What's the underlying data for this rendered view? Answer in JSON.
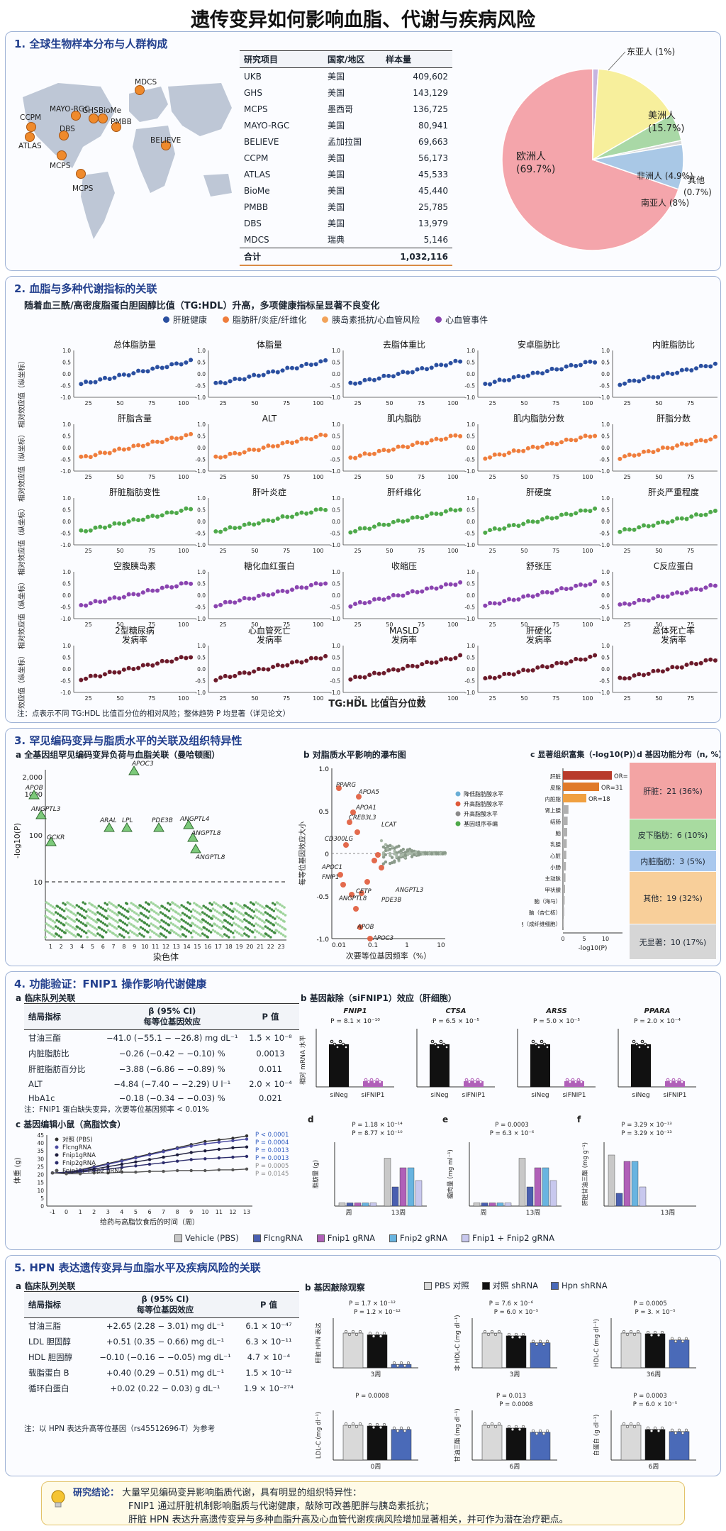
{
  "title": "遗传变异如何影响血脂、代谢与疾病风险",
  "sec1": {
    "title": "1. 全球生物样本分布与人群构成",
    "map_labels": [
      "MAYO-RGC",
      "GHS",
      "BioMe",
      "MDCS",
      "CCPM",
      "DBS",
      "PMBB",
      "BELIEVE",
      "ATLAS",
      "MCPS",
      "MCPS"
    ],
    "table_headers": [
      "研究项目",
      "国家/地区",
      "样本量"
    ],
    "table_rows": [
      [
        "UKB",
        "美国",
        "409,602"
      ],
      [
        "GHS",
        "美国",
        "143,129"
      ],
      [
        "MCPS",
        "墨西哥",
        "136,725"
      ],
      [
        "MAYO-RGC",
        "美国",
        "80,941"
      ],
      [
        "BELIEVE",
        "孟加拉国",
        "69,663"
      ],
      [
        "CCPM",
        "美国",
        "56,173"
      ],
      [
        "ATLAS",
        "美国",
        "45,533"
      ],
      [
        "BioMe",
        "美国",
        "45,440"
      ],
      [
        "PMBB",
        "美国",
        "25,785"
      ],
      [
        "DBS",
        "美国",
        "13,979"
      ],
      [
        "MDCS",
        "瑞典",
        "5,146"
      ]
    ],
    "total": [
      "合计",
      "",
      "1,032,116"
    ],
    "pie_labels": [
      "欧洲人",
      "(69.7%)",
      "美洲人",
      "(15.7%)",
      "南亚人 (8%)",
      "非洲人 (4.9%)",
      "东亚人 (1%)",
      "其他",
      "(0.7%)"
    ],
    "pie": [
      {
        "name": "欧洲人",
        "value": 69.7,
        "color": "#f4a5ab"
      },
      {
        "name": "东亚人",
        "value": 1,
        "color": "#c6b4e0"
      },
      {
        "name": "美洲人",
        "value": 15.7,
        "color": "#f7ef9c"
      },
      {
        "name": "非洲人",
        "value": 4.9,
        "color": "#a9d8a6"
      },
      {
        "name": "其他",
        "value": 0.7,
        "color": "#d9d9d9"
      },
      {
        "name": "南亚人",
        "value": 8,
        "color": "#a9c8e6"
      }
    ]
  },
  "sec2": {
    "title": "2. 血脂与多种代谢指标的关联",
    "subtitle": "随着血三酰/高密度脂蛋白胆固醇比值（TG:HDL）升高，多项健康指标呈显著不良变化",
    "legend": [
      {
        "name": "肝脏健康",
        "color": "#2a4fa0"
      },
      {
        "name": "脂肪肝/炎症/纤维化",
        "color": "#ef7d3c"
      },
      {
        "name": "胰岛素抵抗/心血管风险",
        "color": "#ef7d3c"
      },
      {
        "name": "心血管事件",
        "color": "#7b3b99"
      }
    ],
    "ylabel": "相对效应值（纵坐标）",
    "xticks": [
      "25",
      "50",
      "75",
      "100"
    ],
    "yticks": [
      "1.0",
      "0.5",
      "0.0",
      "-0.5",
      "-1.0"
    ],
    "rows": [
      {
        "color": "#2a4fa0",
        "titles": [
          "总体脂肪量",
          "体脂量",
          "去脂体重比",
          "安卓脂肪比",
          "内脏脂肪比"
        ]
      },
      {
        "color": "#ef7d3c",
        "titles": [
          "肝脂含量",
          "ALT",
          "肌内脂肪",
          "肌内脂肪分数",
          "肝脂分数"
        ]
      },
      {
        "color": "#4ea94a",
        "titles": [
          "肝脏脂肪变性",
          "肝叶炎症",
          "肝纤维化",
          "肝硬度",
          "肝炎严重程度"
        ]
      },
      {
        "color": "#8a44b0",
        "titles": [
          "空腹胰岛素",
          "糖化血红蛋白",
          "收缩压",
          "舒张压",
          "C反应蛋白"
        ]
      },
      {
        "color": "#6b1a2a",
        "titles": [
          "2型糖尿病\n发病率",
          "心血管死亡\n发病率",
          "MASLD\n发病率",
          "肝硬化\n发病率",
          "总体死亡率\n发病率"
        ]
      }
    ],
    "xlabel": "TG:HDL 比值百分位数",
    "note": "注：点表示不同 TG:HDL 比值百分位的相对风险；整体趋势 P 均显著（详见论文）"
  },
  "sec3": {
    "title": "3. 罕见编码变异与脂质水平的关联及组织特异性",
    "a_title": "a   全基因组罕见编码变异负荷与血脂关联（曼哈顿图）",
    "a_ylabel": "-log10(P)",
    "a_xlabel": "染色体",
    "a_yticks": [
      "2,000",
      "1000",
      "100",
      "10"
    ],
    "a_genes": [
      "APOC3",
      "APOB",
      "ANGPTL3",
      "ARAL",
      "LPL",
      "PDE3B",
      "ANGPTL4",
      "ANGPTL8",
      "GCKR",
      "ANGPTL8"
    ],
    "a_chroms": [
      "1",
      "2",
      "3",
      "4",
      "5",
      "6",
      "7",
      "8",
      "9",
      "10",
      "11",
      "12",
      "13",
      "14",
      "15",
      "16",
      "17",
      "18",
      "19",
      "20",
      "21",
      "22",
      "23"
    ],
    "b_title": "b   对脂质水平影响的瀑布图",
    "b_ylabel": "每等位基因效应大小",
    "b_xlabel": "次要等位基因频率（%）",
    "b_legend": [
      {
        "name": "降低脂肪酸水平",
        "color": "#6aaed6"
      },
      {
        "name": "升高脂肪酸水平",
        "color": "#e05a3a"
      },
      {
        "name": "升高脂酸水平",
        "color": "#8a8a8a"
      },
      {
        "name": "基因组序非编",
        "color": "#4ea94a"
      }
    ],
    "b_genes": [
      "PPARG",
      "APOA5",
      "APOA1",
      "CREB3L3",
      "LCAT",
      "CD300LG",
      "APOC1",
      "FNIP1",
      "ANGPTL8",
      "CETP",
      "ANGPTL3",
      "PDE3B",
      "APOB",
      "APOC3"
    ],
    "b_xticks": [
      "0.01",
      "0.1",
      "1",
      "10"
    ],
    "c_title": "c   显著组织富集（-log10(P)）",
    "c_bars": [
      {
        "name": "肝脏",
        "value": 11.5,
        "color": "#b83a2a",
        "or": "OR=14"
      },
      {
        "name": "皮脂",
        "value": 8.5,
        "color": "#e07a2a",
        "or": "OR=31"
      },
      {
        "name": "内脏脂",
        "value": 5.5,
        "color": "#f0a040",
        "or": "OR=18"
      },
      {
        "name": "肾上腺",
        "value": 1.3,
        "color": "#b0b0b0"
      },
      {
        "name": "结肠",
        "value": 1.1,
        "color": "#b0b0b0"
      },
      {
        "name": "脑",
        "value": 1.0,
        "color": "#b0b0b0"
      },
      {
        "name": "乳腺",
        "value": 0.9,
        "color": "#b0b0b0"
      },
      {
        "name": "心脏",
        "value": 0.8,
        "color": "#b0b0b0"
      },
      {
        "name": "小肠",
        "value": 0.7,
        "color": "#b0b0b0"
      },
      {
        "name": "主动脉",
        "value": 0.6,
        "color": "#b0b0b0"
      },
      {
        "name": "甲状腺",
        "value": 0.5,
        "color": "#b0b0b0"
      },
      {
        "name": "脑（海马）",
        "value": 0.4,
        "color": "#b0b0b0"
      },
      {
        "name": "脑（杏仁核）",
        "value": 0.3,
        "color": "#b0b0b0"
      },
      {
        "name": "细胞（成纤维细胞）",
        "value": 0.2,
        "color": "#b0b0b0"
      }
    ],
    "c_xlabel": "-log10(P)",
    "c_xticks": [
      "0",
      "5",
      "10"
    ],
    "d_title": "d   基因功能分布（n, %）",
    "d_boxes": [
      {
        "label": "肝脏：21 (36%)",
        "color": "#f3a4a4"
      },
      {
        "label": "皮下脂肪：6 (10%)",
        "color": "#a8dba0"
      },
      {
        "label": "内脏脂肪：3 (5%)",
        "color": "#a9c8ee"
      },
      {
        "label": "其他：19 (32%)",
        "color": "#f8cf9a"
      },
      {
        "label": "无显著：10 (17%)",
        "color": "#d6d6d6"
      }
    ]
  },
  "sec4": {
    "title": "4. 功能验证：FNIP1 操作影响代谢健康",
    "a_title": "a   临床队列关联",
    "a_headers": [
      "结局指标",
      "β (95% CI)\n每等位基因效应",
      "P 值"
    ],
    "a_rows": [
      [
        "甘油三酯",
        "−41.0 (−55.1 − −26.8) mg dL⁻¹",
        "1.5 × 10⁻⁸"
      ],
      [
        "内脏脂肪比",
        "−0.26 (−0.42 − −0.10) %",
        "0.0013"
      ],
      [
        "肝脏脂肪百分比",
        "−3.88 (−6.86 − −0.89) %",
        "0.011"
      ],
      [
        "ALT",
        "−4.84 (−7.40 − −2.29) U l⁻¹",
        "2.0 × 10⁻⁴"
      ],
      [
        "HbA1c",
        "−0.18 (−0.34 − −0.03) %",
        "0.021"
      ]
    ],
    "a_note": "注：FNIP1 蛋白缺失变异，次要等位基因频率 < 0.01%",
    "b_title": "b   基因敲除（siFNIP1）效应（肝细胞）",
    "b_ylabel": "相对 mRNA 水平",
    "b_panels": [
      {
        "gene": "FNIP1",
        "p": "P = 8.1 × 10⁻¹⁰"
      },
      {
        "gene": "CTSA",
        "p": "P = 6.5 × 10⁻⁵"
      },
      {
        "gene": "ARSS",
        "p": "P = 5.0 × 10⁻⁵"
      },
      {
        "gene": "PPARA",
        "p": "P = 2.0 × 10⁻⁴"
      }
    ],
    "b_xlabels": [
      "siNeg",
      "siFNIP1"
    ],
    "c_title": "c   基因编辑小鼠（高脂饮食）",
    "c_ylabel": "体重 (g)",
    "c_xlabel": "给药与高脂饮食后的时间（周）",
    "c_legend": [
      "对照 (PBS)",
      "FlcngRNA",
      "Fnip1gRNA",
      "Fnip2gRNA",
      "Fnip1 + Fnip2 gRNA"
    ],
    "c_pvals": [
      "P < 0.0001",
      "P = 0.0004",
      "P = 0.0013",
      "P = 0.0013",
      "P = 0.0005",
      "P = 0.0145"
    ],
    "c_xticks": [
      "-1",
      "0",
      "1",
      "2",
      "3",
      "4",
      "5",
      "6",
      "7",
      "8",
      "9",
      "10",
      "11",
      "12",
      "13"
    ],
    "c_yticks": [
      "45",
      "40",
      "35",
      "30",
      "25",
      "20",
      "15",
      "10",
      "5",
      "0"
    ],
    "c_series": [
      [
        21,
        21.5,
        23,
        25,
        27,
        29,
        31,
        33,
        35,
        37,
        39,
        41,
        42,
        43,
        44.5
      ],
      [
        21,
        21.3,
        22.5,
        24.5,
        26.5,
        28.5,
        30.5,
        32.5,
        34.5,
        36.5,
        38,
        39.5,
        40.5,
        41.5,
        42.5
      ],
      [
        21,
        21.2,
        22,
        23.5,
        25,
        26.5,
        28,
        29.5,
        31,
        32.5,
        34,
        35,
        36,
        37,
        37.5
      ],
      [
        21,
        21,
        21.5,
        22.5,
        23.5,
        24.5,
        25.5,
        26.5,
        27.5,
        28.5,
        29.5,
        30,
        30.5,
        31,
        31.5
      ],
      [
        21,
        20.5,
        20.5,
        21,
        21,
        21.5,
        21.5,
        22,
        22,
        22.5,
        22.5,
        22.5,
        23,
        23,
        23.5
      ]
    ],
    "c_colors": [
      "#333333",
      "#4a4aa0",
      "#1c1c3c",
      "#2c2c6c",
      "#555555"
    ],
    "d": {
      "label": "d",
      "ylabel": "脂肪量 (g)",
      "x1": "周",
      "x2": "13周",
      "p1": "P = 1.18 × 10⁻¹⁴",
      "p2": "P = 8.77 × 10⁻¹⁰"
    },
    "e": {
      "label": "e",
      "ylabel": "瘦肉量 (mg ml⁻¹)",
      "x1": "周",
      "x2": "13周",
      "p1": "P = 0.0003",
      "p2": "P = 6.3 × 10⁻⁶"
    },
    "f": {
      "label": "f",
      "ylabel": "肝脏甘油三酯 (mg g⁻¹)",
      "x2": "13周",
      "p1": "P = 3.29 × 10⁻¹³",
      "p2": "P = 3.29 × 10⁻¹³"
    },
    "groups": [
      {
        "name": "Vehicle (PBS)",
        "color": "#c8c8c8"
      },
      {
        "name": "FlcngRNA",
        "color": "#4a5fb0"
      },
      {
        "name": "Fnip1 gRNA",
        "color": "#b060b8"
      },
      {
        "name": "Fnip2 gRNA",
        "color": "#68b4e0"
      },
      {
        "name": "Fnip1 + Fnip2 gRNA",
        "color": "#c8c8ee"
      }
    ]
  },
  "sec5": {
    "title": "5. HPN 表达遗传变异与血脂水平及疾病风险的关联",
    "a_title": "a   临床队列关联",
    "a_headers": [
      "结局指标",
      "β (95% CI)\n每等位基因效应",
      "P 值"
    ],
    "a_rows": [
      [
        "甘油三脂",
        "+2.65 (2.28 − 3.01) mg dL⁻¹",
        "6.1 × 10⁻⁴⁷"
      ],
      [
        "LDL 胆固醇",
        "+0.51 (0.35 − 0.66) mg dL⁻¹",
        "6.3 × 10⁻¹¹"
      ],
      [
        "HDL 胆固醇",
        "−0.10 (−0.16 − −0.05) mg dL⁻¹",
        "4.7 × 10⁻⁴"
      ],
      [
        "载脂蛋白 B",
        "+0.40 (0.29 − 0.51) mg dL⁻¹",
        "1.5 × 10⁻¹²"
      ],
      [
        "循环白蛋白",
        "+0.02 (0.22 − 0.03) g dL⁻¹",
        "1.9 × 10⁻²⁷⁴"
      ]
    ],
    "a_note": "注：以 HPN 表达升高等位基因（rs45512696-T）为参考",
    "b_title": "b   基因敲除观察",
    "b_legend": [
      {
        "name": "PBS 对照",
        "color": "#d9d9d9"
      },
      {
        "name": "对照 shRNA",
        "color": "#111111"
      },
      {
        "name": "Hpn shRNA",
        "color": "#4a6ab8"
      }
    ],
    "b_panels": [
      {
        "ylabel": "肝脏 HPN 表达",
        "x": "3周",
        "p1": "P = 1.7 × 10⁻¹²",
        "p2": "P = 1.2 × 10⁻¹²",
        "v": [
          1.0,
          0.95,
          0.1
        ]
      },
      {
        "ylabel": "非 HDL-C (mg dl⁻¹)",
        "x": "3周",
        "p1": "P = 7.6 × 10⁻⁶",
        "p2": "P = 6.0 × 10⁻⁵",
        "v": [
          1.0,
          0.92,
          0.72
        ]
      },
      {
        "ylabel": "HDL-C (mg dl⁻¹)",
        "x": "36周",
        "p1": "P = 0.0005",
        "p2": "P = 3. × 10⁻⁵",
        "v": [
          1.0,
          0.98,
          0.8
        ]
      },
      {
        "ylabel": "LDL-C (mg dl⁻¹)",
        "x": "0周",
        "p1": "P = 0.0008",
        "p2": "",
        "v": [
          1.0,
          0.98,
          0.88
        ]
      },
      {
        "ylabel": "甘油三酯 (mg dl⁻¹)",
        "x": "6周",
        "p1": "P = 0.013",
        "p2": "P = 0.0008",
        "v": [
          1.0,
          0.92,
          0.8
        ]
      },
      {
        "ylabel": "白蛋白 (g dl⁻¹)",
        "x": "6周",
        "p1": "P = 0.0003",
        "p2": "P = 6.0 × 10⁻⁵",
        "v": [
          1.0,
          0.88,
          0.82
        ]
      }
    ]
  },
  "conclusion": {
    "label": "研究结论：",
    "lines": [
      "大量罕见编码变异影响脂质代谢，具有明显的组织特异性：",
      "FNIP1 通过肝脏机制影响脂质与代谢健康，敲除可改善肥胖与胰岛素抵抗；",
      "肝脏 HPN 表达升高遗传变异与多种血脂升高及心血管代谢疾病风险增加显著相关，并可作为潜在治疗靶点。"
    ]
  }
}
